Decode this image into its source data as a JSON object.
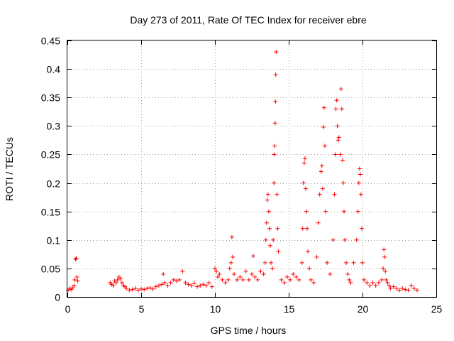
{
  "chart_data": {
    "type": "scatter",
    "title": "Day 273 of 2011, Rate Of TEC Index for receiver ebre",
    "xlabel": "GPS time / hours",
    "ylabel": "ROTI / TECUs",
    "xlim": [
      0,
      25
    ],
    "ylim": [
      0,
      0.45
    ],
    "xticks": [
      0,
      5,
      10,
      15,
      20,
      25
    ],
    "yticks": [
      0,
      0.05,
      0.1,
      0.15,
      0.2,
      0.25,
      0.3,
      0.35,
      0.4,
      0.45
    ],
    "grid": true,
    "marker": "+",
    "color": "#ff0000",
    "series": [
      {
        "x": [
          0.05,
          0.15,
          0.25,
          0.35,
          0.45,
          0.5,
          0.55,
          0.6,
          0.65,
          0.7,
          2.9,
          3.0,
          3.1,
          3.2,
          3.3,
          3.4,
          3.5,
          3.6,
          3.7,
          3.8,
          3.9,
          4.0,
          4.2,
          4.4,
          4.6,
          4.8,
          5.0,
          5.2,
          5.4,
          5.6,
          5.8,
          6.0,
          6.2,
          6.4,
          6.5,
          6.6,
          6.8,
          7.0,
          7.2,
          7.4,
          7.6,
          7.8,
          8.0,
          8.2,
          8.4,
          8.6,
          8.8,
          9.0,
          9.2,
          9.4,
          9.6,
          9.8,
          10.0,
          10.1,
          10.2,
          10.3,
          10.5,
          10.7,
          10.9,
          11.0,
          11.1,
          11.15,
          11.2,
          11.3,
          11.5,
          11.7,
          11.9,
          12.1,
          12.3,
          12.5,
          12.6,
          12.7,
          12.9,
          13.1,
          13.3,
          13.4,
          13.45,
          13.5,
          13.55,
          13.6,
          13.65,
          13.7,
          13.75,
          13.8,
          13.9,
          13.95,
          14.0,
          14.02,
          14.05,
          14.08,
          14.1,
          14.12,
          14.15,
          14.2,
          14.25,
          14.3,
          14.5,
          14.7,
          14.9,
          15.1,
          15.3,
          15.5,
          15.7,
          15.9,
          15.95,
          16.0,
          16.05,
          16.1,
          16.15,
          16.2,
          16.25,
          16.3,
          16.4,
          16.5,
          16.7,
          16.9,
          17.0,
          17.1,
          17.2,
          17.25,
          17.3,
          17.35,
          17.4,
          17.45,
          17.5,
          17.6,
          17.8,
          18.0,
          18.1,
          18.15,
          18.2,
          18.25,
          18.3,
          18.35,
          18.4,
          18.5,
          18.55,
          18.6,
          18.65,
          18.7,
          18.75,
          18.8,
          18.9,
          19.0,
          19.1,
          19.2,
          19.4,
          19.6,
          19.7,
          19.75,
          19.8,
          19.85,
          19.9,
          19.95,
          20.0,
          20.1,
          20.3,
          20.5,
          20.7,
          20.9,
          21.1,
          21.3,
          21.4,
          21.45,
          21.5,
          21.55,
          21.6,
          21.7,
          21.8,
          21.9,
          22.1,
          22.3,
          22.5,
          22.7,
          22.9,
          23.1,
          23.3,
          23.5,
          23.7
        ],
        "y": [
          0.012,
          0.015,
          0.013,
          0.016,
          0.02,
          0.03,
          0.066,
          0.068,
          0.035,
          0.028,
          0.025,
          0.022,
          0.02,
          0.028,
          0.025,
          0.03,
          0.035,
          0.032,
          0.025,
          0.02,
          0.018,
          0.015,
          0.012,
          0.013,
          0.015,
          0.012,
          0.014,
          0.013,
          0.015,
          0.016,
          0.014,
          0.018,
          0.02,
          0.022,
          0.04,
          0.025,
          0.02,
          0.025,
          0.03,
          0.028,
          0.03,
          0.045,
          0.025,
          0.022,
          0.02,
          0.024,
          0.018,
          0.02,
          0.022,
          0.02,
          0.025,
          0.018,
          0.05,
          0.045,
          0.035,
          0.04,
          0.03,
          0.025,
          0.03,
          0.05,
          0.06,
          0.105,
          0.07,
          0.04,
          0.03,
          0.035,
          0.03,
          0.045,
          0.03,
          0.04,
          0.072,
          0.035,
          0.03,
          0.045,
          0.04,
          0.06,
          0.1,
          0.13,
          0.17,
          0.18,
          0.15,
          0.12,
          0.09,
          0.06,
          0.05,
          0.1,
          0.2,
          0.25,
          0.265,
          0.305,
          0.343,
          0.39,
          0.43,
          0.18,
          0.12,
          0.08,
          0.03,
          0.025,
          0.035,
          0.03,
          0.04,
          0.035,
          0.03,
          0.06,
          0.12,
          0.2,
          0.235,
          0.243,
          0.19,
          0.15,
          0.12,
          0.08,
          0.05,
          0.03,
          0.025,
          0.07,
          0.13,
          0.18,
          0.22,
          0.23,
          0.19,
          0.298,
          0.332,
          0.265,
          0.15,
          0.06,
          0.04,
          0.1,
          0.18,
          0.25,
          0.33,
          0.345,
          0.3,
          0.275,
          0.28,
          0.25,
          0.365,
          0.33,
          0.24,
          0.2,
          0.15,
          0.1,
          0.06,
          0.04,
          0.03,
          0.025,
          0.06,
          0.1,
          0.15,
          0.2,
          0.225,
          0.215,
          0.18,
          0.12,
          0.06,
          0.03,
          0.025,
          0.02,
          0.025,
          0.02,
          0.025,
          0.03,
          0.05,
          0.083,
          0.07,
          0.045,
          0.03,
          0.025,
          0.02,
          0.015,
          0.018,
          0.015,
          0.012,
          0.015,
          0.013,
          0.012,
          0.02,
          0.015,
          0.012
        ]
      }
    ]
  }
}
